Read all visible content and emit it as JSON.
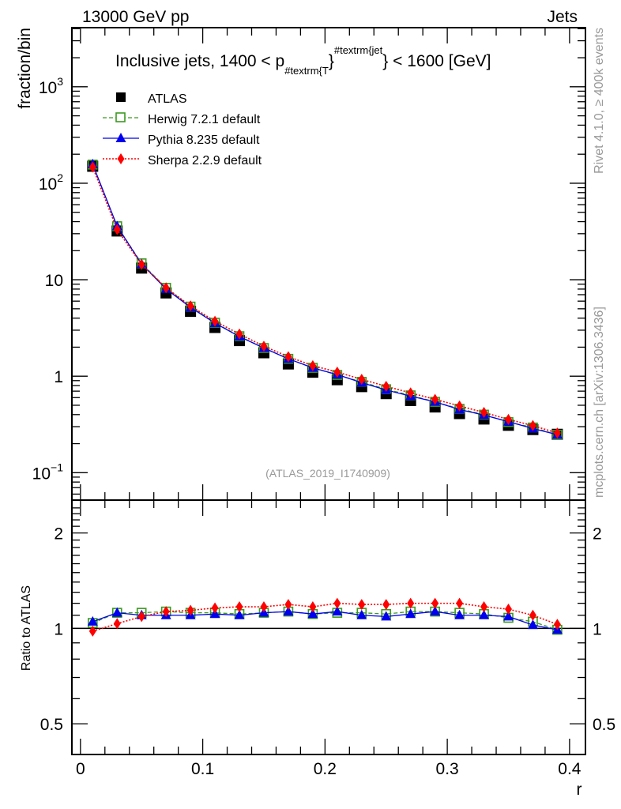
{
  "header": {
    "left": "13000 GeV pp",
    "right": "Jets"
  },
  "side_labels": {
    "rivet": "Rivet 4.1.0, ≥ 400k events",
    "mcplots": "mcplots.cern.ch [arXiv:1306.3436]"
  },
  "chart_data": {
    "type": "line",
    "title_parts": {
      "prefix": "Inclusive jets, 1400 < p",
      "sub": "#textrm{T",
      "brace": "}",
      "sup": "#textrm{jet",
      "suffix": "} < 1600 [GeV]"
    },
    "analysis_label": "(ATLAS_2019_I1740909)",
    "xlabel": "r",
    "ylabel": "fraction/bin",
    "ratio_ylabel": "Ratio to ATLAS",
    "xlim": [
      -0.007,
      0.413
    ],
    "ylim": [
      0.052,
      4100
    ],
    "yscale": "log",
    "ratio_ylim": [
      0.4,
      2.54
    ],
    "ratio_yscale": "log",
    "x_ticks": [
      "0",
      "0.1",
      "0.2",
      "0.3",
      "0.4"
    ],
    "x_tick_values": [
      0,
      0.1,
      0.2,
      0.3,
      0.4
    ],
    "y_ticks": [
      {
        "value": 1000,
        "base": "10",
        "exp": "3"
      },
      {
        "value": 100,
        "base": "10",
        "exp": "2"
      },
      {
        "value": 10,
        "base": "10",
        "exp": ""
      },
      {
        "value": 1,
        "base": "1",
        "exp": ""
      },
      {
        "value": 0.1,
        "base": "10",
        "exp": "−1"
      }
    ],
    "ratio_ticks": [
      {
        "value": 2,
        "label": "2"
      },
      {
        "value": 1,
        "label": "1"
      },
      {
        "value": 0.5,
        "label": "0.5"
      }
    ],
    "x": [
      0.01,
      0.03,
      0.05,
      0.07,
      0.09,
      0.11,
      0.13,
      0.15,
      0.17,
      0.19,
      0.21,
      0.23,
      0.25,
      0.27,
      0.29,
      0.31,
      0.33,
      0.35,
      0.37,
      0.39
    ],
    "data": {
      "name": "ATLAS",
      "color": "#000000",
      "values": [
        150,
        32,
        13.2,
        7.3,
        4.7,
        3.2,
        2.34,
        1.75,
        1.34,
        1.1,
        0.92,
        0.78,
        0.66,
        0.56,
        0.48,
        0.41,
        0.36,
        0.31,
        0.28,
        0.25
      ]
    },
    "series": [
      {
        "name": "Herwig 7.2.1 default",
        "color": "#3a9a1e",
        "marker": "open-square",
        "linestyle": "dashed",
        "ratio": [
          1.04,
          1.12,
          1.12,
          1.13,
          1.12,
          1.12,
          1.11,
          1.12,
          1.13,
          1.11,
          1.12,
          1.12,
          1.11,
          1.13,
          1.13,
          1.12,
          1.11,
          1.08,
          1.05,
          0.99
        ]
      },
      {
        "name": "Pythia 8.235 default",
        "color": "#0000ee",
        "marker": "triangle",
        "linestyle": "solid",
        "ratio": [
          1.05,
          1.12,
          1.1,
          1.1,
          1.1,
          1.11,
          1.1,
          1.12,
          1.13,
          1.11,
          1.13,
          1.1,
          1.09,
          1.11,
          1.13,
          1.1,
          1.1,
          1.09,
          1.025,
          0.99
        ]
      },
      {
        "name": "Sherpa 2.2.9 default",
        "color": "#ff0000",
        "marker": "diamond",
        "linestyle": "dotted",
        "ratio": [
          0.98,
          1.035,
          1.09,
          1.13,
          1.14,
          1.16,
          1.17,
          1.17,
          1.19,
          1.17,
          1.2,
          1.19,
          1.19,
          1.2,
          1.2,
          1.2,
          1.17,
          1.15,
          1.1,
          1.03
        ]
      }
    ]
  }
}
